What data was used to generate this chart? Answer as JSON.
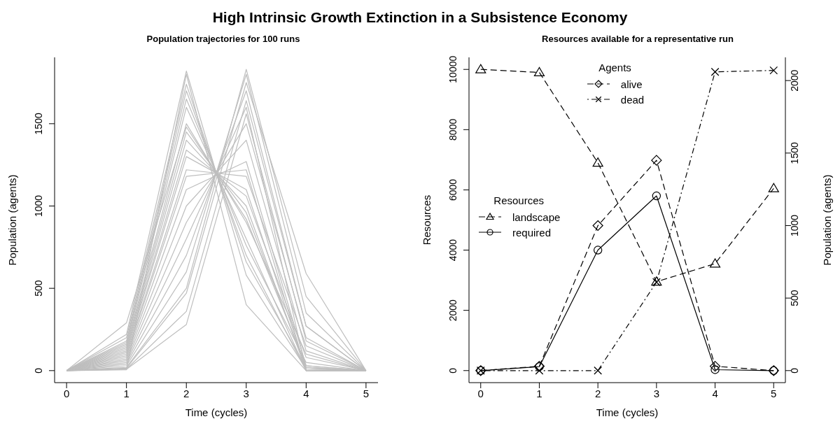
{
  "chart_data": [
    {
      "type": "line",
      "title": "High Intrinsic Growth Extinction in a Subsistence Economy",
      "subtitle": "Population trajectories for 100 runs",
      "xlabel": "Time (cycles)",
      "ylabel": "Population (agents)",
      "x": [
        0,
        1,
        2,
        3,
        4,
        5
      ],
      "xlim": [
        -0.2,
        5.2
      ],
      "xticks": [
        0,
        1,
        2,
        3,
        4,
        5
      ],
      "ylim": [
        -73,
        1903
      ],
      "yticks": [
        0,
        500,
        1000,
        1500
      ],
      "series": [
        {
          "color": "#bebebe",
          "values": [
            0,
            290,
            1480,
            920,
            30,
            0
          ]
        },
        {
          "color": "#bebebe",
          "values": [
            0,
            220,
            1820,
            580,
            10,
            0
          ]
        },
        {
          "color": "#bebebe",
          "values": [
            0,
            200,
            1740,
            660,
            20,
            0
          ]
        },
        {
          "color": "#bebebe",
          "values": [
            0,
            180,
            1700,
            700,
            0,
            0
          ]
        },
        {
          "color": "#bebebe",
          "values": [
            0,
            170,
            1650,
            760,
            50,
            0
          ]
        },
        {
          "color": "#bebebe",
          "values": [
            0,
            160,
            1600,
            800,
            0,
            0
          ]
        },
        {
          "color": "#bebebe",
          "values": [
            0,
            150,
            1500,
            900,
            100,
            0
          ]
        },
        {
          "color": "#bebebe",
          "values": [
            0,
            140,
            1450,
            960,
            20,
            0
          ]
        },
        {
          "color": "#bebebe",
          "values": [
            0,
            130,
            1400,
            1000,
            0,
            0
          ]
        },
        {
          "color": "#bebebe",
          "values": [
            0,
            120,
            1340,
            1060,
            80,
            0
          ]
        },
        {
          "color": "#bebebe",
          "values": [
            0,
            110,
            1300,
            1100,
            10,
            0
          ]
        },
        {
          "color": "#bebebe",
          "values": [
            0,
            100,
            1220,
            1180,
            150,
            0
          ]
        },
        {
          "color": "#bebebe",
          "values": [
            0,
            90,
            1180,
            1220,
            0,
            0
          ]
        },
        {
          "color": "#bebebe",
          "values": [
            0,
            80,
            1100,
            1270,
            30,
            0
          ]
        },
        {
          "color": "#bebebe",
          "values": [
            0,
            70,
            1000,
            1400,
            120,
            0
          ]
        },
        {
          "color": "#bebebe",
          "values": [
            0,
            60,
            900,
            1500,
            200,
            0
          ]
        },
        {
          "color": "#bebebe",
          "values": [
            0,
            50,
            800,
            1600,
            0,
            0
          ]
        },
        {
          "color": "#bebebe",
          "values": [
            0,
            40,
            700,
            1700,
            270,
            0
          ]
        },
        {
          "color": "#bebebe",
          "values": [
            0,
            30,
            600,
            1800,
            350,
            0
          ]
        },
        {
          "color": "#bebebe",
          "values": [
            0,
            20,
            500,
            1830,
            450,
            0
          ]
        },
        {
          "color": "#bebebe",
          "values": [
            0,
            15,
            470,
            1750,
            590,
            0
          ]
        },
        {
          "color": "#bebebe",
          "values": [
            0,
            10,
            360,
            1640,
            270,
            0
          ]
        },
        {
          "color": "#bebebe",
          "values": [
            0,
            8,
            280,
            1560,
            180,
            0
          ]
        },
        {
          "color": "#bebebe",
          "values": [
            0,
            5,
            1800,
            400,
            0,
            0
          ]
        }
      ]
    },
    {
      "type": "line",
      "subtitle": "Resources available for a representative run",
      "xlabel": "Time (cycles)",
      "ylabel": "Resources",
      "y2label": "Population (agents)",
      "x": [
        0,
        1,
        2,
        3,
        4,
        5
      ],
      "xlim": [
        -0.2,
        5.2
      ],
      "xticks": [
        0,
        1,
        2,
        3,
        4,
        5
      ],
      "ylim": [
        -400,
        10400
      ],
      "yticks": [
        0,
        2000,
        4000,
        6000,
        8000,
        10000
      ],
      "y2lim": [
        -83,
        2160
      ],
      "y2ticks": [
        0,
        500,
        1000,
        1500,
        2000
      ],
      "legend_title": [
        "Resources",
        "Agents"
      ],
      "legend": [
        "left",
        "top"
      ],
      "series": [
        {
          "name": "landscape",
          "color": "#000000",
          "marker": "triangle",
          "line_style": "dashed",
          "values": [
            10000,
            9900,
            6900,
            2950,
            3550,
            6050
          ]
        },
        {
          "name": "required",
          "color": "#000000",
          "marker": "circle",
          "line_style": "solid",
          "values": [
            0,
            130,
            4000,
            5800,
            30,
            0
          ]
        },
        {
          "name": "alive",
          "color": "#000000",
          "marker": "diamond",
          "line_style": "dashed",
          "axis": "y2",
          "values": [
            0,
            30,
            1000,
            1450,
            30,
            0
          ]
        },
        {
          "name": "dead",
          "color": "#000000",
          "marker": "cross",
          "line_style": "dashdot",
          "axis": "y2",
          "values": [
            0,
            0,
            0,
            610,
            2060,
            2070
          ]
        }
      ]
    }
  ]
}
